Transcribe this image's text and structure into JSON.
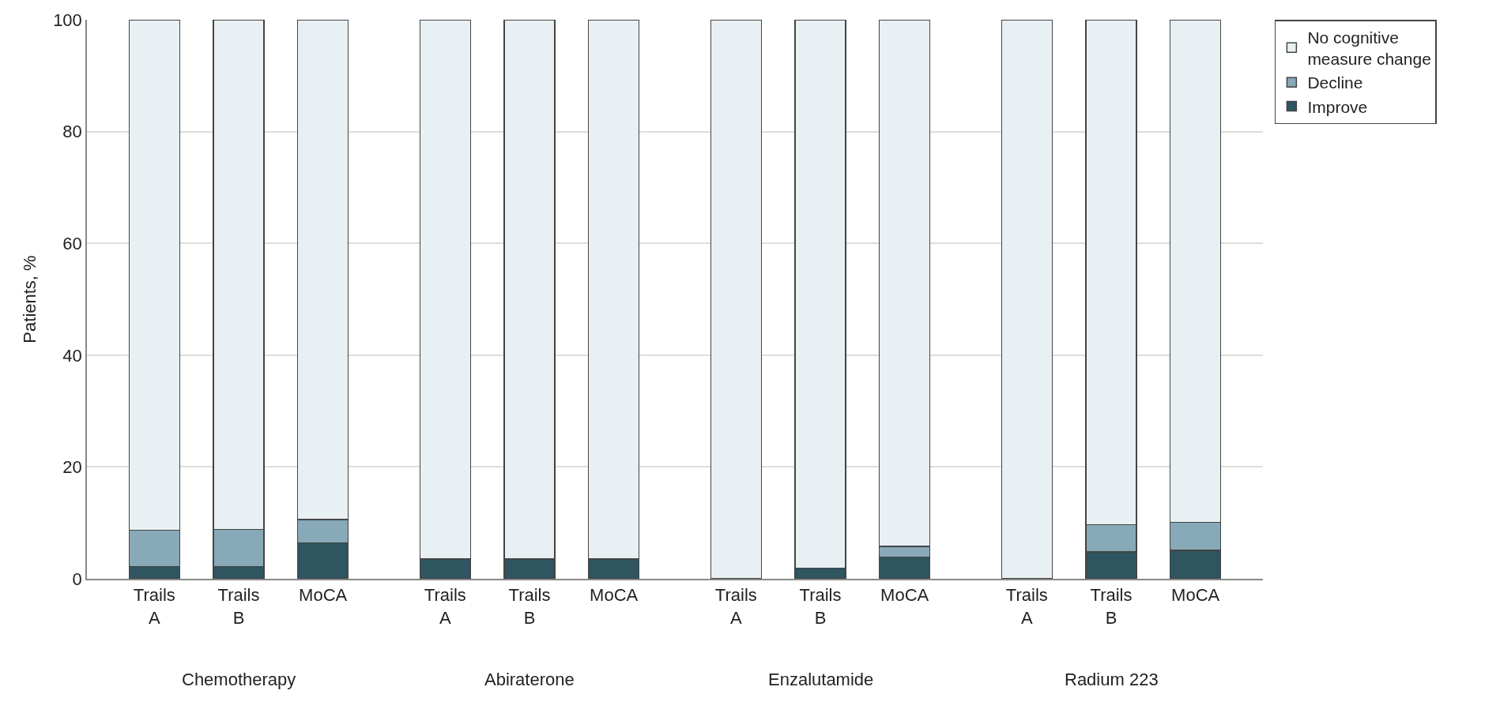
{
  "chart_data": {
    "type": "bar",
    "stacked": true,
    "ylabel": "Patients, %",
    "categories": [
      "Trails A",
      "Trails B",
      "MoCA",
      "Trails A",
      "Trails B",
      "MoCA",
      "Trails A",
      "Trails B",
      "MoCA",
      "Trails A",
      "Trails B",
      "MoCA"
    ],
    "series": [
      {
        "name": "Improve",
        "color": "#2e5560",
        "values": [
          2.2,
          2.2,
          6.4,
          3.5,
          3.5,
          3.5,
          0,
          1.9,
          3.9,
          0,
          4.8,
          5.1
        ]
      },
      {
        "name": "Decline",
        "color": "#87a9b8",
        "values": [
          6.5,
          6.6,
          4.2,
          0,
          0,
          0,
          0,
          0,
          1.9,
          0,
          4.9,
          5.0
        ]
      },
      {
        "name": "No cognitive measure change",
        "color": "#e8f0f4",
        "values": [
          91.3,
          91.2,
          89.4,
          96.5,
          96.5,
          96.5,
          100,
          98.1,
          94.2,
          100,
          90.3,
          89.9
        ]
      }
    ],
    "annotations": [
      "Chemotherapy",
      "Abiraterone",
      "Enzalutamide",
      "Radium 223"
    ],
    "ylim": [
      0,
      100
    ],
    "yticks": [
      0,
      20,
      40,
      60,
      80,
      100
    ],
    "grid": "y",
    "legend": "top right"
  }
}
